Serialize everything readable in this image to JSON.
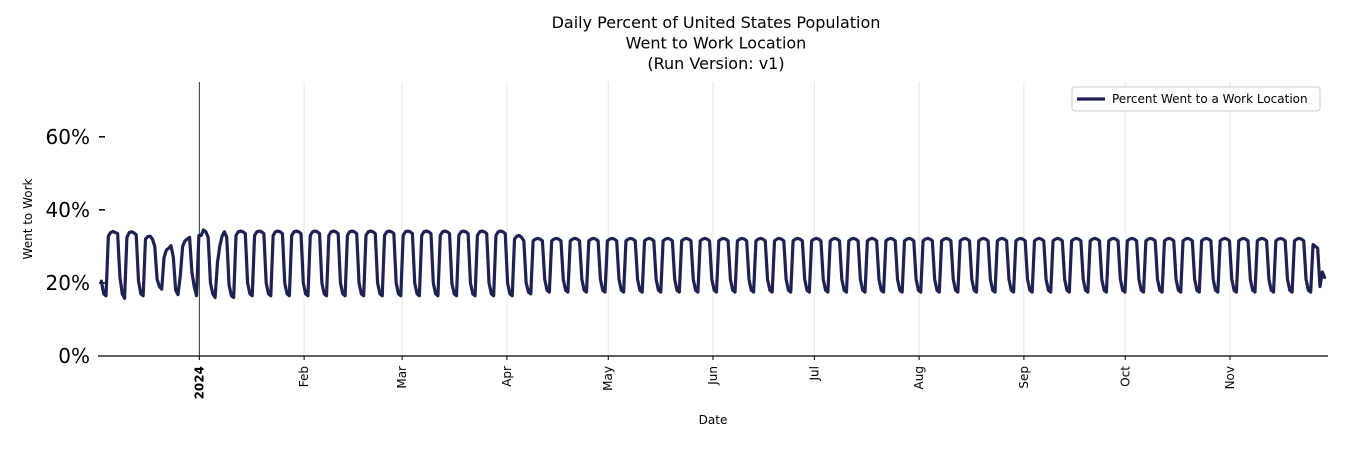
{
  "chart_data": {
    "type": "line",
    "title": [
      "Daily Percent of United States Population",
      "Went to Work Location",
      "(Run Version: v1)"
    ],
    "xlabel": "Date",
    "ylabel": "Went to Work",
    "ylim": [
      0,
      75
    ],
    "xlim": [
      "2023-12-02",
      "2024-11-30"
    ],
    "y_ticks": [
      0,
      20,
      40,
      60
    ],
    "y_tick_labels": [
      "0%",
      "20%",
      "40%",
      "60%"
    ],
    "x_ticks": [
      "2024-01-01",
      "2024-02-01",
      "2024-03-01",
      "2024-04-01",
      "2024-05-01",
      "2024-06-01",
      "2024-07-01",
      "2024-08-01",
      "2024-09-01",
      "2024-10-01",
      "2024-11-01"
    ],
    "x_tick_labels": [
      "2024",
      "Feb",
      "Mar",
      "Apr",
      "May",
      "Jun",
      "Jul",
      "Aug",
      "Sep",
      "Oct",
      "Nov"
    ],
    "x_tick_bold": "2024",
    "grid": "vertical",
    "legend_position": "top-right",
    "series": [
      {
        "name": "Percent Went to a Work Location",
        "color": "#1f2150",
        "x_start": "2023-12-03",
        "x_end": "2024-11-29",
        "values": [
          20.5,
          17.0,
          16.5,
          32.8,
          33.8,
          34.1,
          33.8,
          33.5,
          21.5,
          17.0,
          15.8,
          32.5,
          33.8,
          34.0,
          33.7,
          33.2,
          20.5,
          17.0,
          16.5,
          32.0,
          32.7,
          32.8,
          32.0,
          30.0,
          21.0,
          19.0,
          18.3,
          27.0,
          29.0,
          29.5,
          30.2,
          27.0,
          18.0,
          16.8,
          22.0,
          30.0,
          31.5,
          32.0,
          32.5,
          23.0,
          19.0,
          16.5,
          33.0,
          33.0,
          34.5,
          34.0,
          32.5,
          20.0,
          17.0,
          16.0,
          25.5,
          30.0,
          32.8,
          34.0,
          32.5,
          19.5,
          16.5,
          16.0,
          33.0,
          34.0,
          34.2,
          34.0,
          33.5,
          20.0,
          17.0,
          16.5,
          33.0,
          34.0,
          34.2,
          34.0,
          33.5,
          20.0,
          17.0,
          16.5,
          33.0,
          34.0,
          34.2,
          34.0,
          33.5,
          20.0,
          17.0,
          16.5,
          33.0,
          34.0,
          34.2,
          34.0,
          33.5,
          20.0,
          17.0,
          16.5,
          33.0,
          34.0,
          34.2,
          34.0,
          33.5,
          20.0,
          17.0,
          16.5,
          33.0,
          34.0,
          34.2,
          34.0,
          33.5,
          20.0,
          17.0,
          16.5,
          33.0,
          34.0,
          34.2,
          34.0,
          33.5,
          20.0,
          17.0,
          16.5,
          33.0,
          34.0,
          34.2,
          34.0,
          33.5,
          20.0,
          17.0,
          16.5,
          33.0,
          34.0,
          34.2,
          34.0,
          33.5,
          20.0,
          17.0,
          16.5,
          33.0,
          34.0,
          34.2,
          34.0,
          33.5,
          20.0,
          17.0,
          16.5,
          33.0,
          34.0,
          34.2,
          34.0,
          33.5,
          20.0,
          17.0,
          16.5,
          33.0,
          34.0,
          34.2,
          34.0,
          33.5,
          20.0,
          17.0,
          16.5,
          33.0,
          34.0,
          34.2,
          34.0,
          33.5,
          20.0,
          17.0,
          16.5,
          33.0,
          34.0,
          34.2,
          34.0,
          33.5,
          20.0,
          17.0,
          16.5,
          33.0,
          34.0,
          34.2,
          34.0,
          33.5,
          20.0,
          17.0,
          16.5,
          32.0,
          32.8,
          33.0,
          32.5,
          31.5,
          20.0,
          17.5,
          17.0,
          31.5,
          32.0,
          32.2,
          32.0,
          31.5,
          21.0,
          18.0,
          17.5,
          31.5,
          32.0,
          32.2,
          32.0,
          31.5,
          21.0,
          18.0,
          17.5,
          31.5,
          32.0,
          32.2,
          32.0,
          31.5,
          21.0,
          18.0,
          17.5,
          31.5,
          32.0,
          32.2,
          32.0,
          31.5,
          21.0,
          18.0,
          17.5,
          31.5,
          32.0,
          32.2,
          32.0,
          31.5,
          21.0,
          18.0,
          17.5,
          31.5,
          32.0,
          32.2,
          32.0,
          31.5,
          21.0,
          18.0,
          17.5,
          31.5,
          32.0,
          32.2,
          32.0,
          31.5,
          21.0,
          18.0,
          17.5,
          31.5,
          32.0,
          32.2,
          32.0,
          31.5,
          21.0,
          18.0,
          17.5,
          31.5,
          32.0,
          32.2,
          32.0,
          31.5,
          21.0,
          18.0,
          17.5,
          31.5,
          32.0,
          32.2,
          32.0,
          31.5,
          21.0,
          18.0,
          17.5,
          31.5,
          32.0,
          32.2,
          32.0,
          31.5,
          21.0,
          18.0,
          17.5,
          31.5,
          32.0,
          32.2,
          32.0,
          31.5,
          21.0,
          18.0,
          17.5,
          31.5,
          32.0,
          32.2,
          32.0,
          31.5,
          21.0,
          18.0,
          17.5,
          31.5,
          32.0,
          32.2,
          32.0,
          31.5,
          21.0,
          18.0,
          17.5,
          31.5,
          32.0,
          32.2,
          32.0,
          31.5,
          21.0,
          18.0,
          17.5,
          31.5,
          32.0,
          32.2,
          32.0,
          31.5,
          21.0,
          18.0,
          17.5,
          31.5,
          32.0,
          32.2,
          32.0,
          31.5,
          21.0,
          18.0,
          17.5,
          31.5,
          32.0,
          32.2,
          32.0,
          31.5,
          21.0,
          18.0,
          17.5,
          31.5,
          32.0,
          32.2,
          32.0,
          31.5,
          21.0,
          18.0,
          17.5,
          31.5,
          32.0,
          32.2,
          32.0,
          31.5,
          21.0,
          18.0,
          17.5,
          31.5,
          32.0,
          32.2,
          32.0,
          31.5,
          21.0,
          18.0,
          17.5,
          31.5,
          32.0,
          32.2,
          32.0,
          31.5,
          21.0,
          18.0,
          17.5,
          31.5,
          32.0,
          32.2,
          32.0,
          31.5,
          21.0,
          18.0,
          17.5,
          31.5,
          32.0,
          32.2,
          32.0,
          31.5,
          21.0,
          18.0,
          17.5,
          31.5,
          32.0,
          32.2,
          32.0,
          31.5,
          21.0,
          18.0,
          17.5,
          31.5,
          32.0,
          32.2,
          32.0,
          31.5,
          21.0,
          18.0,
          17.5,
          31.5,
          32.0,
          32.2,
          32.0,
          31.5,
          21.0,
          18.0,
          17.5,
          31.5,
          32.0,
          32.2,
          32.0,
          31.5,
          21.0,
          18.0,
          17.5,
          31.5,
          32.0,
          32.2,
          32.0,
          31.5,
          21.0,
          18.0,
          17.5,
          31.5,
          32.0,
          32.2,
          32.0,
          31.5,
          21.0,
          18.0,
          17.5,
          31.5,
          32.0,
          32.2,
          32.0,
          31.5,
          21.0,
          18.0,
          17.5,
          31.5,
          32.0,
          32.2,
          32.0,
          31.5,
          21.0,
          18.0,
          17.5,
          31.5,
          32.0,
          32.2,
          32.0,
          31.5,
          21.0,
          18.0,
          17.5,
          31.5,
          32.0,
          32.2,
          32.0,
          31.5,
          21.0,
          18.0,
          17.5,
          31.5,
          32.0,
          32.2,
          32.0,
          31.5,
          21.0,
          18.0,
          17.5,
          31.5,
          32.0,
          32.2,
          32.0,
          31.5,
          21.0,
          18.0,
          17.5,
          31.5,
          32.0,
          32.2,
          32.0,
          31.5,
          21.0,
          18.0,
          17.5,
          31.5,
          32.0,
          32.2,
          32.0,
          31.5,
          21.0,
          18.0,
          17.5,
          31.5,
          32.0,
          32.2,
          32.0,
          31.5,
          21.0,
          18.0,
          17.5,
          31.5,
          32.0,
          32.2,
          32.0,
          31.5,
          21.0,
          18.0,
          17.5,
          31.5,
          32.0,
          32.2,
          32.0,
          31.5,
          21.0,
          18.0,
          17.5,
          31.5,
          32.0,
          32.2,
          32.0,
          31.5,
          21.0,
          18.0,
          17.5,
          30.5,
          30.0,
          29.5,
          19.0,
          23.0,
          21.5
        ]
      }
    ]
  }
}
